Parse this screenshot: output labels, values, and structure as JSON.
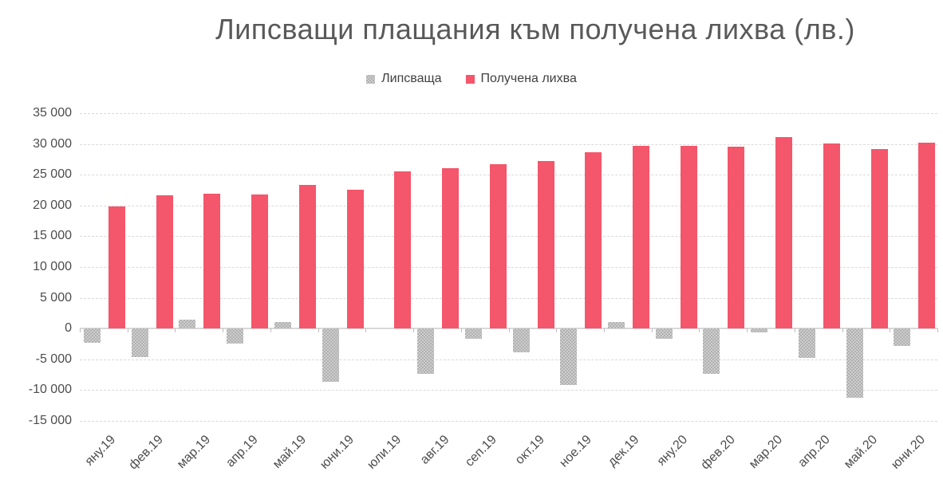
{
  "title": "Липсващи плащания към получена лихва (лв.)",
  "chart_data": {
    "type": "bar",
    "title": "Липсващи плащания към получена лихва (лв.)",
    "legend_position": "top",
    "grid": "horizontal-dashed",
    "gridline_color": "#d9d9d9",
    "ylim": [
      -15000,
      35000
    ],
    "ytick_step": 5000,
    "y_ticks": [
      {
        "value": 35000,
        "label": "35 000"
      },
      {
        "value": 30000,
        "label": "30 000"
      },
      {
        "value": 25000,
        "label": "25 000"
      },
      {
        "value": 20000,
        "label": "20 000"
      },
      {
        "value": 15000,
        "label": "15 000"
      },
      {
        "value": 10000,
        "label": "10 000"
      },
      {
        "value": 5000,
        "label": "5 000"
      },
      {
        "value": 0,
        "label": "0"
      },
      {
        "value": -5000,
        "label": "-5 000"
      },
      {
        "value": -10000,
        "label": "-10 000"
      },
      {
        "value": -15000,
        "label": "-15 000"
      }
    ],
    "categories": [
      "яну.19",
      "фев.19",
      "мар.19",
      "апр.19",
      "май.19",
      "юни.19",
      "юли.19",
      "авг.19",
      "сеп.19",
      "окт.19",
      "ное.19",
      "дек.19",
      "яну.20",
      "фев.20",
      "мар.20",
      "апр.20",
      "май.20",
      "юни.20"
    ],
    "series": [
      {
        "name": "Липсваща",
        "color": "#cdcdcd",
        "pattern": "checker",
        "values": [
          -2300,
          -4700,
          1400,
          -2400,
          1000,
          -8600,
          0,
          -7400,
          -1700,
          -3800,
          -9200,
          1100,
          -1600,
          -7300,
          -600,
          -4800,
          -11200,
          -2800
        ]
      },
      {
        "name": "Получена лихва",
        "color": "#f4566b",
        "pattern": "solid",
        "values": [
          19900,
          21600,
          21900,
          21800,
          23300,
          22600,
          25600,
          26000,
          26700,
          27200,
          28600,
          29700,
          29700,
          29500,
          31100,
          30100,
          29200,
          30200
        ]
      }
    ]
  }
}
